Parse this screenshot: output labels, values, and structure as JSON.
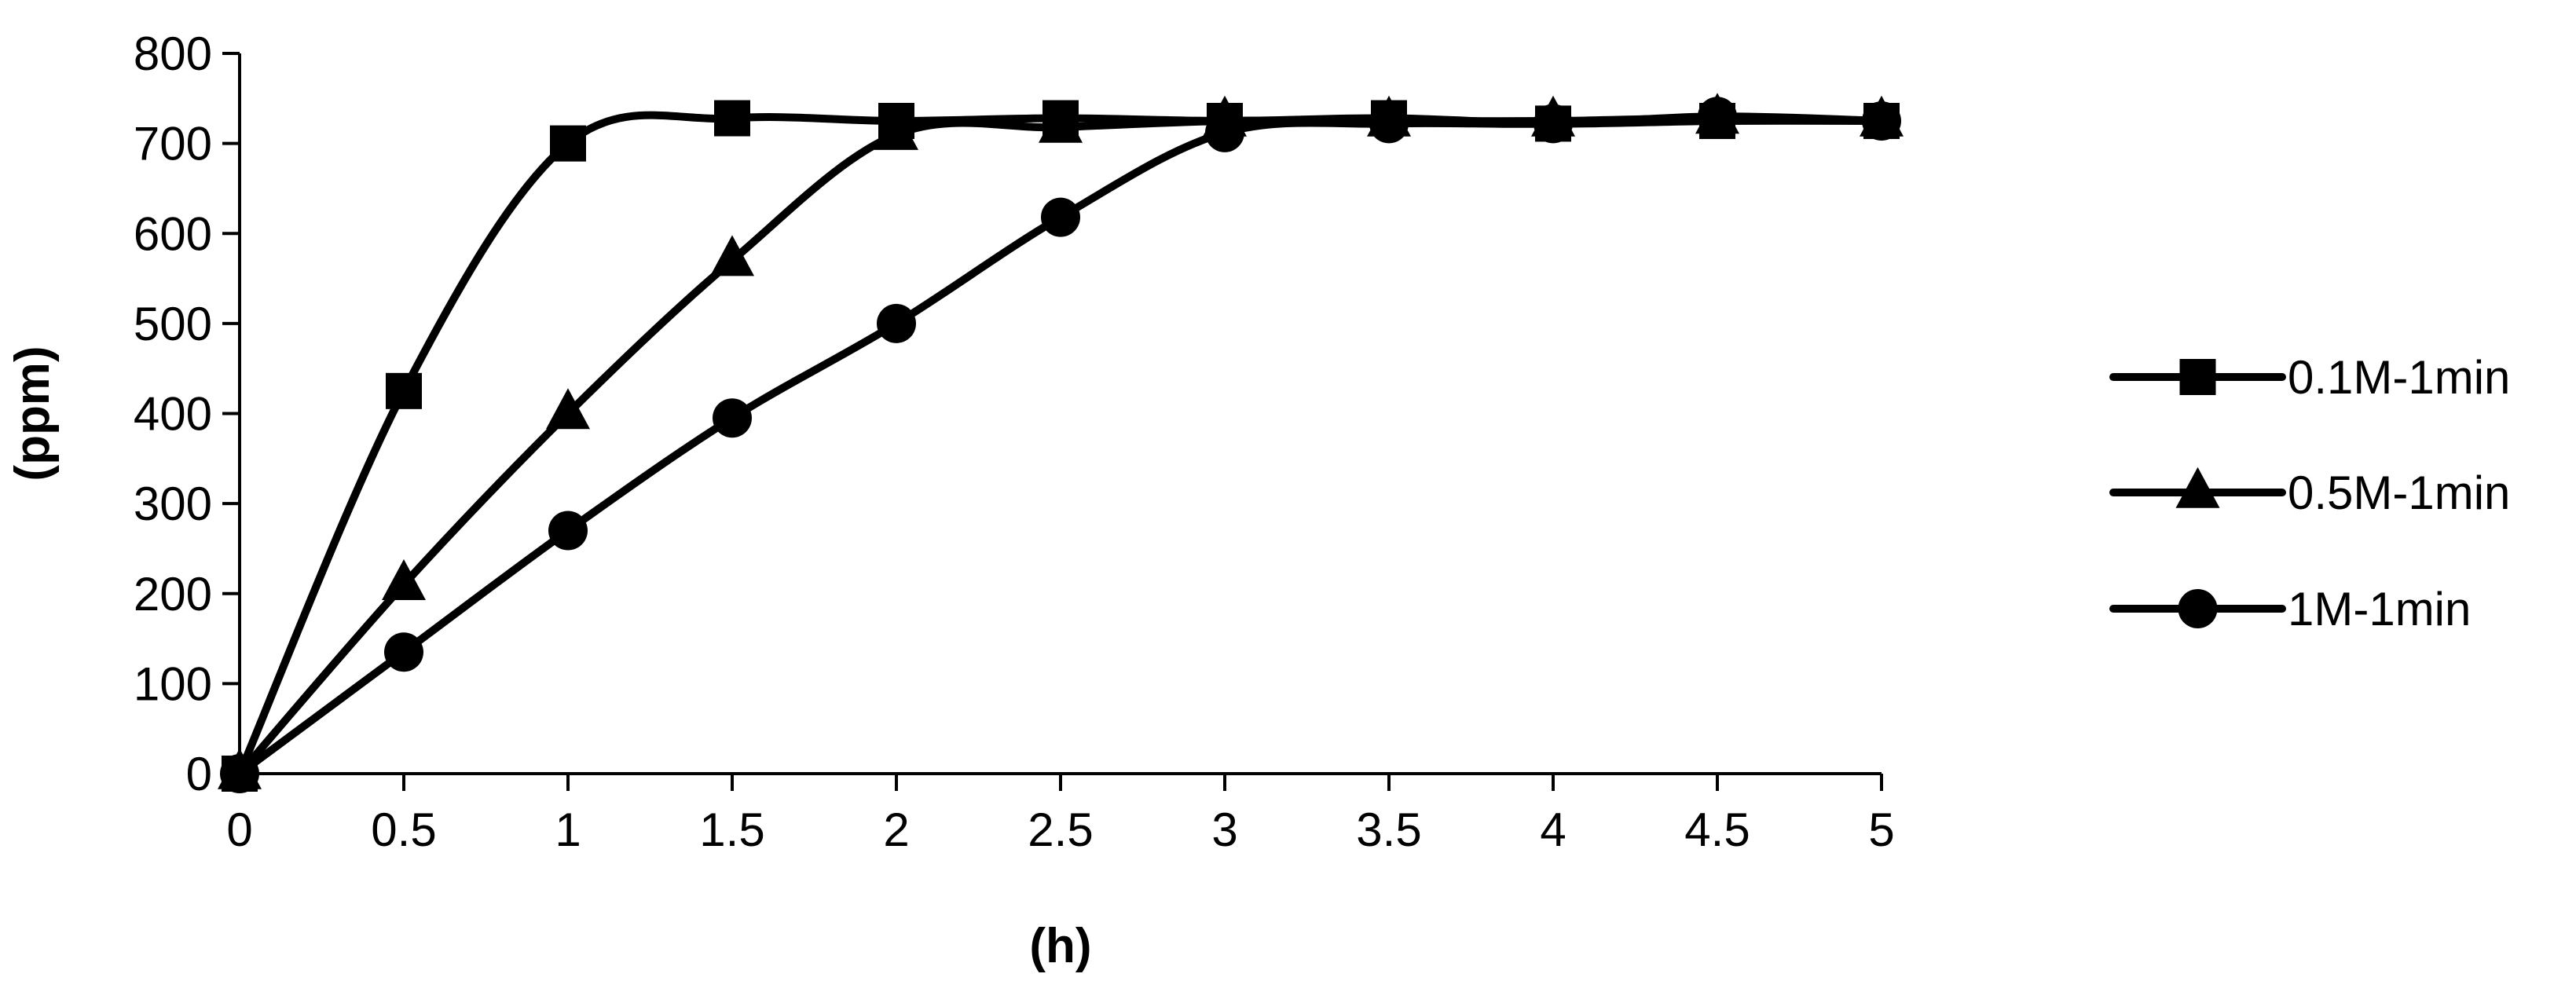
{
  "chart_data": {
    "type": "line",
    "title": "",
    "xlabel": "(h)",
    "ylabel": "(ppm)",
    "xlim": [
      0,
      5
    ],
    "ylim": [
      0,
      800
    ],
    "x_ticks": [
      "0",
      "0.5",
      "1",
      "1.5",
      "2",
      "2.5",
      "3",
      "3.5",
      "4",
      "4.5",
      "5"
    ],
    "y_ticks": [
      "0",
      "100",
      "200",
      "300",
      "400",
      "500",
      "600",
      "700",
      "800"
    ],
    "grid": false,
    "legend_position": "right",
    "series": [
      {
        "name": "0.1M-1min",
        "marker": "square",
        "x": [
          0,
          0.5,
          1,
          1.5,
          2,
          2.5,
          3,
          3.5,
          4,
          4.5,
          5
        ],
        "y": [
          0,
          425,
          700,
          728,
          725,
          728,
          725,
          728,
          722,
          725,
          725
        ]
      },
      {
        "name": "0.5M-1min",
        "marker": "triangle",
        "x": [
          0,
          0.5,
          1,
          1.5,
          2,
          2.5,
          3,
          3.5,
          4,
          4.5,
          5
        ],
        "y": [
          0,
          210,
          400,
          570,
          710,
          718,
          725,
          725,
          725,
          728,
          725
        ]
      },
      {
        "name": "1M-1min",
        "marker": "circle",
        "x": [
          0,
          0.5,
          1,
          1.5,
          2,
          2.5,
          3,
          3.5,
          4,
          4.5,
          5
        ],
        "y": [
          0,
          135,
          270,
          395,
          500,
          618,
          712,
          722,
          722,
          730,
          725
        ]
      }
    ]
  }
}
